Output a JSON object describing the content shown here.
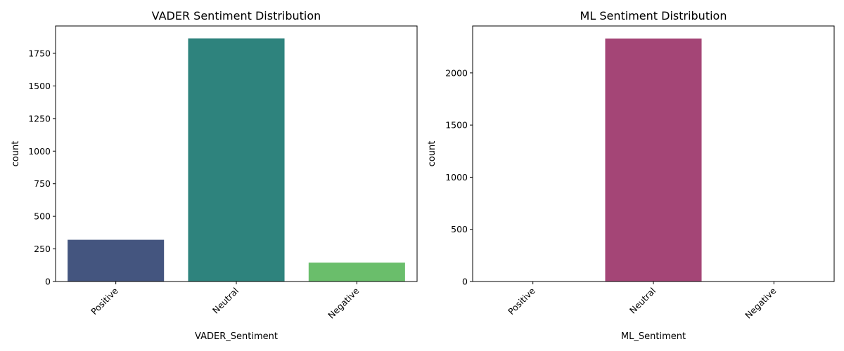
{
  "chart_data": [
    {
      "type": "bar",
      "title": "VADER Sentiment Distribution",
      "xlabel": "VADER_Sentiment",
      "ylabel": "count",
      "categories": [
        "Positive",
        "Neutral",
        "Negative"
      ],
      "values": [
        320,
        1865,
        145
      ],
      "colors": [
        "#44557f",
        "#2e837d",
        "#6abe6b"
      ],
      "ylim": [
        0,
        1960
      ],
      "yticks": [
        0,
        250,
        500,
        750,
        1000,
        1250,
        1500,
        1750
      ],
      "ytick_labels": [
        "0",
        "250",
        "500",
        "750",
        "1000",
        "1250",
        "1500",
        "1750"
      ],
      "grid": false,
      "xtick_rotation_deg": 45
    },
    {
      "type": "bar",
      "title": "ML Sentiment Distribution",
      "xlabel": "ML_Sentiment",
      "ylabel": "count",
      "categories": [
        "Positive",
        "Neutral",
        "Negative"
      ],
      "values": [
        0,
        2330,
        0
      ],
      "colors": [
        "#3b528b",
        "#a44576",
        "#5ec962"
      ],
      "ylim": [
        0,
        2450
      ],
      "yticks": [
        0,
        500,
        1000,
        1500,
        2000
      ],
      "ytick_labels": [
        "0",
        "500",
        "1000",
        "1500",
        "2000"
      ],
      "grid": false,
      "xtick_rotation_deg": 45
    }
  ]
}
